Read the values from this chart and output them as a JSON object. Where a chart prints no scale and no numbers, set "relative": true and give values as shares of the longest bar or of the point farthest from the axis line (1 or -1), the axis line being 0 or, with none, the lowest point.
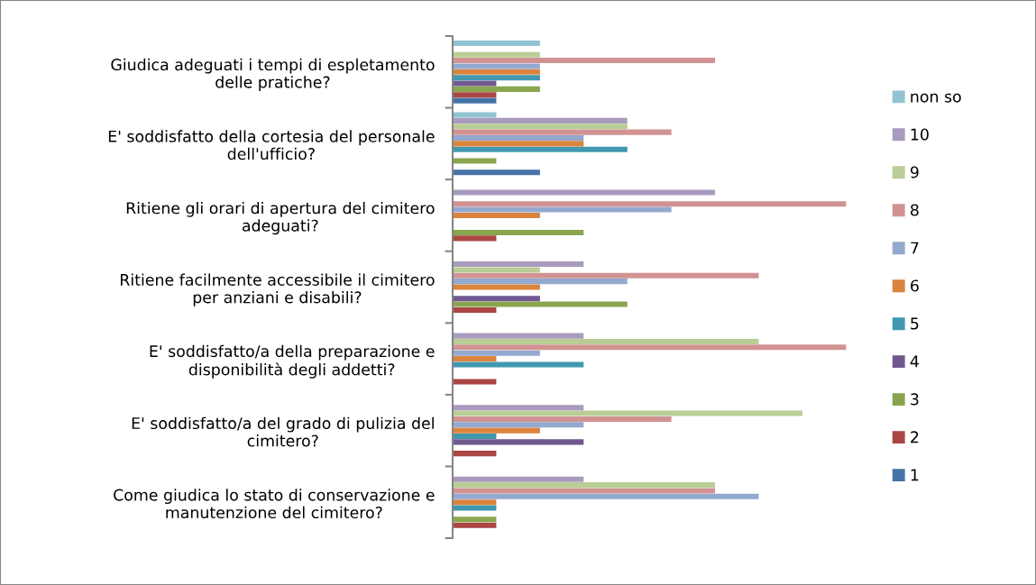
{
  "chart_data": {
    "type": "bar",
    "orientation": "horizontal",
    "relative": true,
    "grid": false,
    "legend": "right",
    "categories": [
      "Giudica adeguati i tempi di espletamento delle pratiche?",
      "E' soddisfatto della cortesia del personale dell'ufficio?",
      "Ritiene gli orari di apertura del cimitero adeguati?",
      "Ritiene facilmente accessibile il cimitero per anziani e disabili?",
      "E' soddisfatto/a della preparazione e disponibilità degli addetti?",
      "E' soddisfatto/a del grado di pulizia del cimitero?",
      "Come giudica lo stato di conservazione e manutenzione del cimitero?"
    ],
    "series": [
      {
        "name": "1",
        "color": "#4572a7",
        "values": [
          0.111,
          0.222,
          0,
          0,
          0,
          0,
          0
        ]
      },
      {
        "name": "2",
        "color": "#aa4643",
        "values": [
          0.111,
          0,
          0.111,
          0.111,
          0.111,
          0.111,
          0.111
        ]
      },
      {
        "name": "3",
        "color": "#89a54e",
        "values": [
          0.222,
          0.111,
          0.333,
          0.444,
          0,
          0,
          0.111
        ]
      },
      {
        "name": "4",
        "color": "#71588f",
        "values": [
          0.111,
          0,
          0,
          0.222,
          0,
          0.333,
          0
        ]
      },
      {
        "name": "5",
        "color": "#4198af",
        "values": [
          0.222,
          0.444,
          0,
          0,
          0.333,
          0.111,
          0.111
        ]
      },
      {
        "name": "6",
        "color": "#db843d",
        "values": [
          0.222,
          0.333,
          0.222,
          0.222,
          0.111,
          0.222,
          0.111
        ]
      },
      {
        "name": "7",
        "color": "#93a9cf",
        "values": [
          0.222,
          0.333,
          0.556,
          0.444,
          0.222,
          0.333,
          0.778
        ]
      },
      {
        "name": "8",
        "color": "#d19392",
        "values": [
          0.667,
          0.556,
          1,
          0.778,
          1,
          0.556,
          0.667
        ]
      },
      {
        "name": "9",
        "color": "#b9cd96",
        "values": [
          0.222,
          0.444,
          0,
          0.222,
          0.778,
          0.889,
          0.667
        ]
      },
      {
        "name": "10",
        "color": "#a99bbd",
        "values": [
          0,
          0.444,
          0.667,
          0.333,
          0.333,
          0.333,
          0.333
        ]
      },
      {
        "name": "non so",
        "color": "#92c3d3",
        "values": [
          0.222,
          0.111,
          0,
          0,
          0,
          0,
          0
        ]
      }
    ]
  }
}
